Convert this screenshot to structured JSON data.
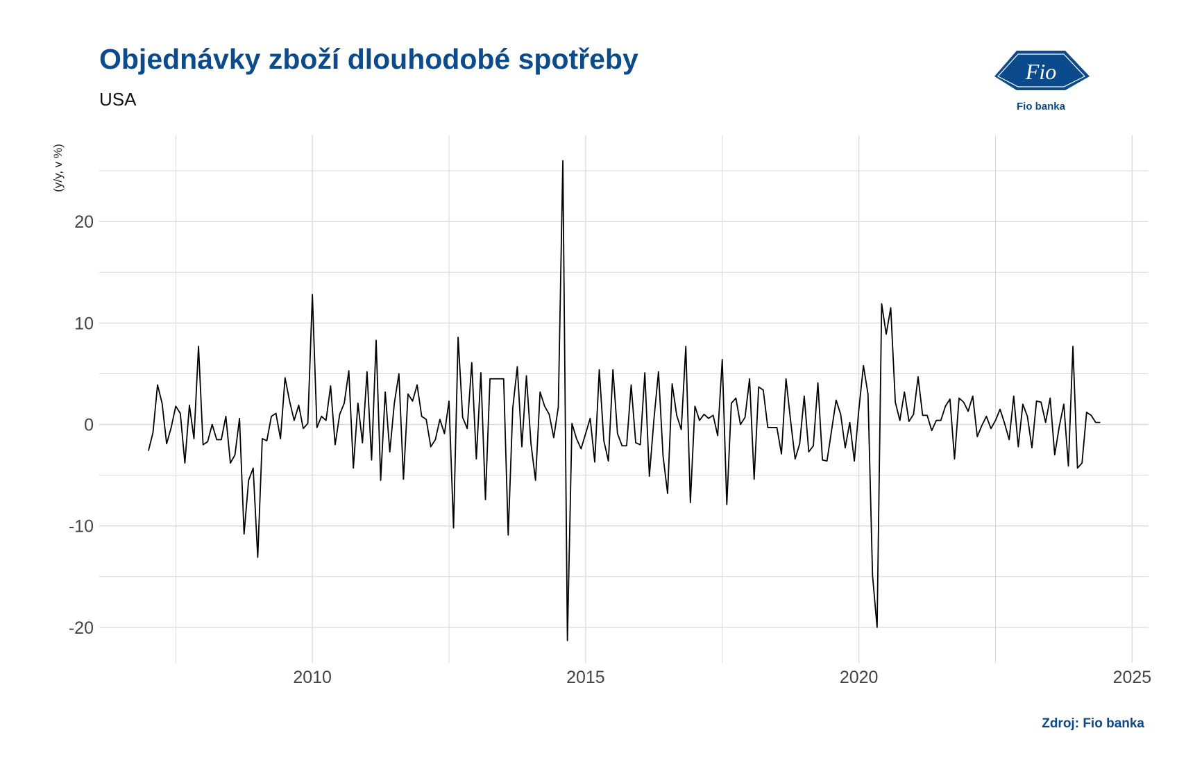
{
  "header": {
    "title": "Objednávky zboží dlouhodobé spotřeby",
    "subtitle": "USA"
  },
  "logo": {
    "mark_text": "Fio",
    "label": "Fio banka"
  },
  "footer": {
    "source": "Zdroj: Fio banka"
  },
  "colors": {
    "title": "#0b4a8b",
    "logo": "#0b4a8b",
    "line": "#000000",
    "grid": "#d9d9d9"
  },
  "chart_data": {
    "type": "line",
    "title": "Objednávky zboží dlouhodobé spotřeby",
    "subtitle": "USA",
    "xlabel": "",
    "ylabel": "(y/y, v %)",
    "x_start": 2007.0,
    "x_step_months": 1,
    "xlim": [
      2006.1,
      2025.3
    ],
    "ylim": [
      -23.5,
      28.5
    ],
    "x_ticks": [
      2010,
      2015,
      2020,
      2025
    ],
    "y_ticks": [
      -20,
      -10,
      0,
      10,
      20
    ],
    "grid": true,
    "series": [
      {
        "values": [
          -2.6,
          -0.8,
          3.9,
          2.1,
          -1.9,
          -0.3,
          1.8,
          1.1,
          -3.8,
          1.9,
          -1.4,
          7.7,
          -2.0,
          -1.7,
          0.0,
          -1.5,
          -1.5,
          0.8,
          -3.8,
          -3.0,
          0.6,
          -10.8,
          -5.5,
          -4.3,
          -13.1,
          -1.4,
          -1.6,
          0.8,
          1.1,
          -1.4,
          4.6,
          2.3,
          0.4,
          1.9,
          -0.4,
          0.1,
          12.8,
          -0.3,
          0.8,
          0.4,
          3.8,
          -2.0,
          1.0,
          2.1,
          5.3,
          -4.3,
          2.1,
          -1.8,
          5.2,
          -3.5,
          8.3,
          -5.5,
          3.2,
          -2.7,
          2.1,
          5.0,
          -5.4,
          3.0,
          2.3,
          3.9,
          0.8,
          0.5,
          -2.2,
          -1.5,
          0.5,
          -0.9,
          2.3,
          -10.2,
          8.6,
          0.7,
          -0.4,
          6.1,
          -3.4,
          5.1,
          -7.4,
          4.5,
          4.5,
          4.5,
          4.5,
          -10.9,
          1.6,
          5.7,
          -2.2,
          4.8,
          -1.9,
          -5.5,
          3.2,
          1.8,
          1.0,
          -1.3,
          1.7,
          26.0,
          -21.3,
          0.1,
          -1.4,
          -2.4,
          -0.9,
          0.6,
          -3.7,
          5.4,
          -1.6,
          -3.6,
          5.4,
          -0.9,
          -2.1,
          -2.1,
          3.9,
          -1.8,
          -2.0,
          5.1,
          -5.1,
          0.5,
          5.2,
          -3.1,
          -6.8,
          4.0,
          0.9,
          -0.5,
          7.7,
          -7.7,
          1.8,
          0.4,
          1.0,
          0.6,
          0.9,
          -1.1,
          6.4,
          -7.9,
          2.1,
          2.6,
          0.0,
          0.7,
          4.5,
          -5.4,
          3.7,
          3.4,
          -0.3,
          -0.3,
          -0.3,
          -2.9,
          4.5,
          0.4,
          -3.4,
          -1.9,
          2.8,
          -2.7,
          -2.1,
          4.1,
          -3.5,
          -3.6,
          -0.6,
          2.4,
          1.0,
          -2.3,
          0.2,
          -3.6,
          1.5,
          5.8,
          3.0,
          -14.9,
          -20.0,
          11.9,
          8.9,
          11.5,
          2.2,
          0.4,
          3.2,
          0.3,
          1.0,
          4.7,
          0.9,
          0.9,
          -0.6,
          0.4,
          0.4,
          1.8,
          2.5,
          -3.4,
          2.6,
          2.2,
          1.3,
          2.8,
          -1.2,
          -0.1,
          0.8,
          -0.4,
          0.4,
          1.5,
          0.1,
          -1.5,
          2.8,
          -2.2,
          2.0,
          0.8,
          -2.3,
          2.3,
          2.2,
          0.2,
          2.6,
          -3.0,
          -0.2,
          2.0,
          -4.1,
          7.7,
          -4.3,
          -3.8,
          1.2,
          0.9,
          0.2,
          0.2
        ]
      }
    ]
  }
}
